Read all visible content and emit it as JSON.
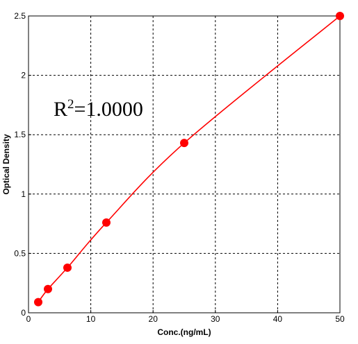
{
  "chart_data": {
    "type": "scatter",
    "title": "",
    "xlabel": "Conc.(ng/mL)",
    "ylabel": "Optical Density",
    "xlim": [
      0,
      50
    ],
    "ylim": [
      0,
      2.5
    ],
    "x_ticks": [
      "0",
      "10",
      "20",
      "30",
      "40",
      "50"
    ],
    "y_ticks": [
      "0",
      "0.5",
      "1",
      "1.5",
      "2",
      "2.5"
    ],
    "grid": true,
    "legend": "none",
    "annotation": {
      "base": "R",
      "superscript": "2",
      "rest": "=1.0000"
    },
    "series": [
      {
        "x": [
          1.5625,
          3.125,
          6.25,
          12.5,
          25,
          50
        ],
        "y": [
          0.09,
          0.2,
          0.38,
          0.76,
          1.43,
          2.5
        ],
        "color": "#ff0000",
        "marker": "filled-circle",
        "fit_line": "smooth-curve"
      }
    ]
  }
}
